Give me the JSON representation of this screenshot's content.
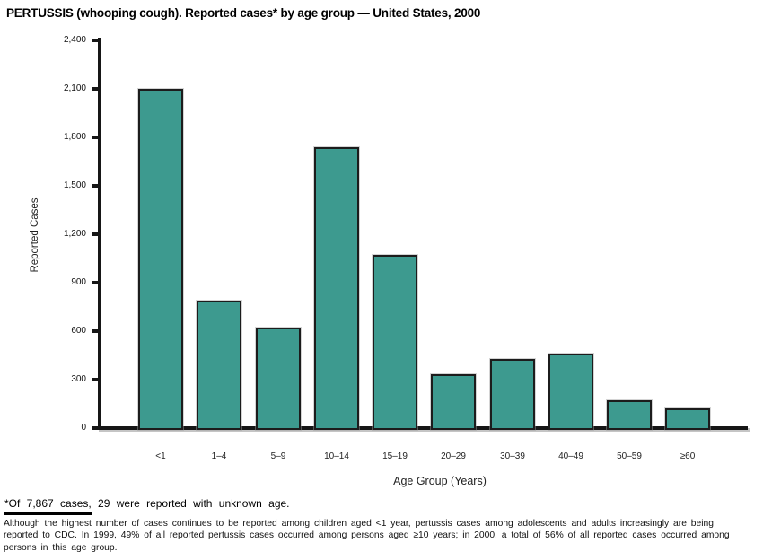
{
  "title": "PERTUSSIS (whooping cough). Reported cases* by age group — United States, 2000",
  "chart_data": {
    "type": "bar",
    "title": "PERTUSSIS (whooping cough). Reported cases* by age group — United States, 2000",
    "categories": [
      "<1",
      "1–4",
      "5–9",
      "10–14",
      "15–19",
      "20–29",
      "30–39",
      "40–49",
      "50–59",
      "≥60"
    ],
    "values": [
      2100,
      790,
      620,
      1740,
      1070,
      335,
      430,
      460,
      175,
      120
    ],
    "xlabel": "Age Group (Years)",
    "ylabel": "Reported Cases",
    "ylim": [
      0,
      2400
    ],
    "ytick_interval": 300,
    "ytick_labels": [
      "0",
      "300",
      "600",
      "900",
      "1,200",
      "1,500",
      "1,800",
      "2,100",
      "2,400"
    ],
    "grid": false,
    "legend": "none",
    "bar_color": "#3D9A8F",
    "bar_border_color": "#1C1C1C",
    "axis_color": "#161616"
  },
  "footnotes": {
    "note_underlined": "*Of 7,867 cases,",
    "note_rest": " 29 were reported with unknown age.",
    "paragraph": "Although the highest number of cases continues to be reported among children aged <1 year, pertussis cases among adolescents and adults increasingly are being\nreported to CDC. In 1999, 49% of all reported pertussis cases occurred among persons aged ≥10 years; in 2000, a total of 56% of all reported cases occurred among\npersons in this age group."
  }
}
